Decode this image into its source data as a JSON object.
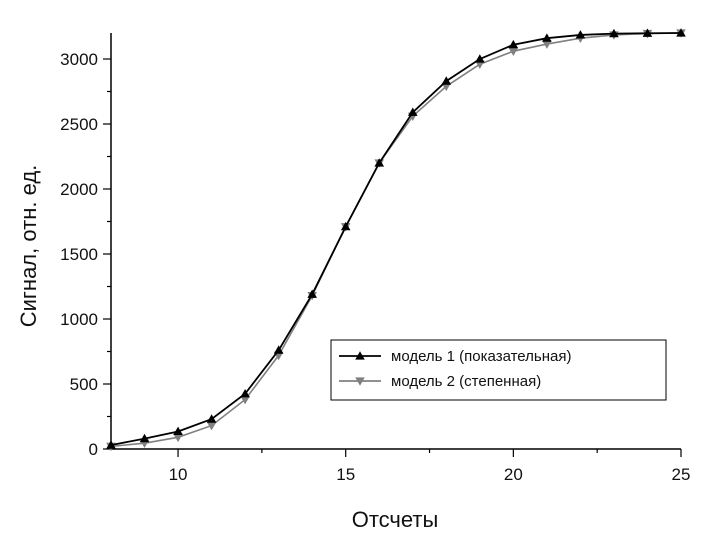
{
  "chart_data": {
    "type": "line",
    "xlabel": "Отсчеты",
    "ylabel": "Сигнал, отн. ед.",
    "xlim": [
      8,
      25
    ],
    "ylim": [
      0,
      3200
    ],
    "x_ticks": [
      10,
      15,
      20,
      25
    ],
    "y_ticks": [
      0,
      500,
      1000,
      1500,
      2000,
      2500,
      3000
    ],
    "grid": false,
    "legend_position": "lower-right",
    "series": [
      {
        "name": "модель 1 (показательная)",
        "color": "#000000",
        "marker": "triangle-up",
        "x": [
          8,
          9,
          10,
          11,
          12,
          13,
          14,
          15,
          16,
          17,
          18,
          19,
          20,
          21,
          22,
          23,
          24,
          25
        ],
        "y": [
          30,
          80,
          135,
          230,
          425,
          760,
          1190,
          1710,
          2200,
          2590,
          2830,
          3000,
          3110,
          3160,
          3185,
          3195,
          3198,
          3200
        ]
      },
      {
        "name": "модель 2 (степенная)",
        "color": "#808080",
        "marker": "triangle-down",
        "x": [
          8,
          9,
          10,
          11,
          12,
          13,
          14,
          15,
          16,
          17,
          18,
          19,
          20,
          21,
          22,
          23,
          24,
          25
        ],
        "y": [
          20,
          45,
          90,
          180,
          380,
          720,
          1180,
          1710,
          2200,
          2560,
          2790,
          2960,
          3060,
          3115,
          3160,
          3185,
          3196,
          3200
        ]
      }
    ]
  }
}
